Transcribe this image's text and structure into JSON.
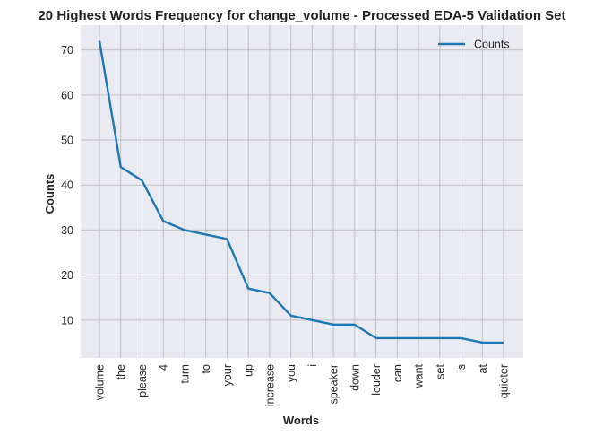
{
  "chart_data": {
    "type": "line",
    "title": "20 Highest Words Frequency for change_volume - Processed EDA-5 Validation Set",
    "xlabel": "Words",
    "ylabel": "Counts",
    "categories": [
      "volume",
      "the",
      "please",
      "4",
      "turn",
      "to",
      "your",
      "up",
      "increase",
      "you",
      "i",
      "speaker",
      "down",
      "louder",
      "can",
      "want",
      "set",
      "is",
      "at",
      "quieter"
    ],
    "series": [
      {
        "name": "Counts",
        "values": [
          72,
          44,
          41,
          32,
          30,
          29,
          28,
          17,
          16,
          11,
          10,
          9,
          9,
          6,
          6,
          6,
          6,
          6,
          5,
          5
        ]
      }
    ],
    "y_ticks": [
      10,
      20,
      30,
      40,
      50,
      60,
      70
    ],
    "ylim": [
      1.6,
      75.5
    ],
    "grid": true,
    "legend_position": "top-right",
    "colors": {
      "line": "#1f77b4",
      "plot_bg": "#eaeaf2",
      "grid": "#c0c0c0"
    }
  }
}
